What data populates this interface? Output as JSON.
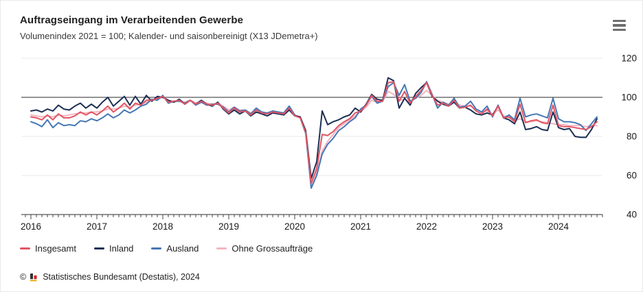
{
  "header": {
    "title": "Auftragseingang im Verarbeitenden Gewerbe",
    "subtitle": "Volumenindex 2021 = 100; Kalender- und saisonbereinigt (X13 JDemetra+)",
    "menu_icon": "hamburger-icon"
  },
  "footer": {
    "copyright": "©",
    "source_icon": "destatis-bars-icon",
    "source": "Statistisches Bundesamt (Destatis), 2024"
  },
  "colors": {
    "insgesamt": "#e25563",
    "inland": "#1b2f55",
    "ausland": "#4577b5",
    "ohne_grossauftraege": "#f5b4c0",
    "grid": "#e8e8e8",
    "axis": "#2a2a2a",
    "text": "#1a1a1a"
  },
  "chart_data": {
    "type": "line",
    "frequency": "monthly",
    "x_start": "2016-01",
    "x_end": "2024-08",
    "x_tick_years": [
      "2016",
      "2017",
      "2018",
      "2019",
      "2020",
      "2021",
      "2022",
      "2023",
      "2024"
    ],
    "ylim": [
      40,
      120
    ],
    "y_ticks": [
      40,
      60,
      80,
      100,
      120
    ],
    "y_axis_side": "right",
    "reference_line_y": 100,
    "grid": "horizontal",
    "legend_position": "bottom",
    "series": [
      {
        "name": "Insgesamt",
        "color": "#e25563",
        "values": [
          90,
          89.5,
          88.5,
          91,
          88.5,
          91.5,
          89.5,
          89.5,
          90.5,
          92.5,
          91,
          92.5,
          91,
          93,
          95.5,
          92.5,
          94.5,
          97,
          94,
          97,
          96,
          98.5,
          98.5,
          99.5,
          100.5,
          97.5,
          98,
          98.5,
          96.5,
          98.5,
          96.5,
          98,
          96.5,
          96,
          97,
          94.5,
          92,
          94.5,
          92.5,
          93,
          91,
          93.5,
          92,
          91.5,
          92.5,
          92,
          91.5,
          94.5,
          90.5,
          89.5,
          82,
          56,
          63.5,
          81,
          80.5,
          82.5,
          85.5,
          87.5,
          89,
          92,
          93,
          96,
          101,
          98,
          98,
          107.5,
          108,
          98,
          103,
          97,
          100.5,
          103.5,
          107.5,
          101,
          96,
          97,
          95.5,
          98.5,
          94.5,
          95,
          96,
          93,
          91.5,
          94,
          90.5,
          95.5,
          89.5,
          90,
          87.5,
          96.5,
          87,
          88,
          88.5,
          87,
          86.5,
          96,
          85.5,
          85,
          85,
          84.5,
          84,
          83.5,
          85,
          87.5
        ]
      },
      {
        "name": "Inland",
        "color": "#1b2f55",
        "values": [
          93,
          93.5,
          92.5,
          94,
          93,
          96,
          94,
          93.5,
          95.5,
          97,
          94.5,
          96.5,
          94.5,
          97.5,
          100,
          95.5,
          98,
          100.5,
          96,
          100.5,
          96.5,
          101,
          98,
          100.5,
          100,
          98.5,
          97.5,
          99,
          96.5,
          98.5,
          96.5,
          98.5,
          96.5,
          95.5,
          97.5,
          94,
          91.5,
          93.5,
          91.5,
          93,
          90.5,
          92.5,
          91.5,
          90.5,
          92,
          91.5,
          91,
          93.5,
          90.5,
          90,
          83,
          58.5,
          67,
          93,
          86,
          87.5,
          88.5,
          90,
          91,
          94.5,
          92.5,
          96.5,
          101.5,
          99,
          98.5,
          110,
          108.5,
          94.5,
          99.5,
          96,
          102,
          105,
          107.5,
          100.5,
          98,
          96.5,
          95.5,
          97.5,
          94.5,
          95,
          93.5,
          91.5,
          91,
          92,
          91,
          95.5,
          89.5,
          88.5,
          86.5,
          92.5,
          83.5,
          84,
          85,
          83.5,
          83,
          92.5,
          84.5,
          83.5,
          84,
          80,
          79.5,
          79.5,
          83.5,
          89
        ]
      },
      {
        "name": "Ausland",
        "color": "#4577b5",
        "values": [
          87.5,
          86.5,
          85,
          88.5,
          84.5,
          87,
          85.5,
          86,
          85.5,
          88,
          87.5,
          89,
          88,
          89.5,
          91.5,
          89.5,
          91,
          93.5,
          92,
          93.5,
          95.5,
          96.5,
          99,
          98.5,
          101,
          97,
          98,
          98,
          97,
          98.5,
          96,
          97.5,
          96,
          96.5,
          96.5,
          95,
          92.5,
          95,
          93,
          93.5,
          91.5,
          94.5,
          92.5,
          92,
          93,
          92.5,
          92,
          95.5,
          91,
          89.5,
          81.5,
          53.5,
          60,
          71,
          76,
          79,
          83,
          85,
          87.5,
          89.5,
          94,
          96,
          100.5,
          97,
          98,
          105.5,
          107.5,
          101,
          106.5,
          98,
          99.5,
          102.5,
          108,
          101.5,
          94.5,
          97.5,
          96,
          99.5,
          95,
          95.5,
          98,
          94,
          92.5,
          95.5,
          90,
          96,
          89.5,
          91,
          88.5,
          99.5,
          90,
          91,
          91.5,
          90.5,
          89.5,
          99.5,
          89,
          87.5,
          87.5,
          87,
          86,
          83,
          86.5,
          90
        ]
      },
      {
        "name": "Ohne Grossaufträge",
        "color": "#f5b4c0",
        "values": [
          91,
          90.5,
          90,
          90.5,
          90,
          91,
          90.5,
          91,
          91.5,
          92,
          92,
          92.5,
          92.5,
          93,
          94,
          94,
          94.5,
          95.5,
          95,
          96,
          96.5,
          97.5,
          98.5,
          99,
          100,
          98.5,
          98,
          98.5,
          97.5,
          98.5,
          97,
          98,
          97,
          96.5,
          97,
          95.5,
          93.5,
          95,
          93.5,
          93.5,
          92,
          93.5,
          92.5,
          92,
          92.5,
          92.5,
          92,
          94,
          91,
          90,
          82.5,
          55,
          62,
          72.5,
          77.5,
          81,
          84.5,
          86.5,
          88.5,
          90.5,
          92.5,
          95,
          98.5,
          97.5,
          98,
          103,
          101.5,
          98.5,
          99,
          97.5,
          99.5,
          101,
          103.5,
          101,
          98.5,
          97.5,
          96.5,
          97.5,
          96,
          95.5,
          95.5,
          94,
          92.5,
          93,
          91.5,
          93.5,
          90.5,
          89.5,
          88,
          89,
          87.5,
          87.5,
          88,
          87.5,
          87,
          86.5,
          86,
          86,
          85.5,
          85.5,
          85.5,
          85,
          85.5,
          85.5
        ]
      }
    ]
  }
}
